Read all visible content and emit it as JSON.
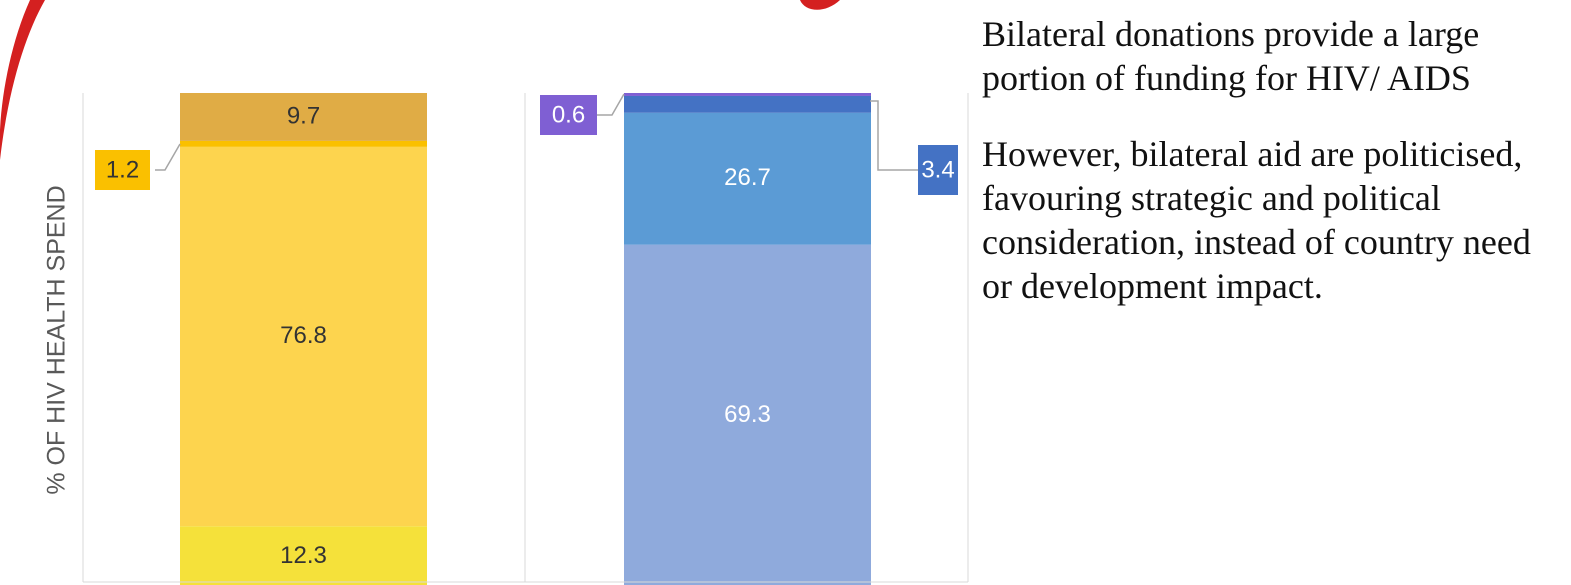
{
  "chart_data": {
    "type": "bar",
    "stacked": true,
    "y_label": "% OF HIV HEALTH SPEND",
    "categories": [
      null,
      null
    ],
    "ylim": [
      0,
      100
    ],
    "series": [
      {
        "values": [
          12.3,
          69.3
        ],
        "colors": [
          "#f5e13a",
          "#8faadc"
        ],
        "label_colors": [
          "#333333",
          "#ffffff"
        ]
      },
      {
        "values": [
          76.8,
          26.7
        ],
        "colors": [
          "#fdd44e",
          "#5b9bd5"
        ],
        "label_colors": [
          "#333333",
          "#ffffff"
        ]
      },
      {
        "values": [
          1.2,
          3.4
        ],
        "colors": [
          "#fac000",
          "#4472c4"
        ],
        "label_colors": [
          "#333333",
          "#ffffff"
        ]
      },
      {
        "values": [
          9.7,
          0.6
        ],
        "colors": [
          "#e0ac45",
          "#7f5fd3"
        ],
        "label_colors": [
          "#333333",
          "#ffffff"
        ]
      }
    ]
  },
  "text": {
    "paragraphs": [
      "Bilateral donations provide a large portion of funding for HIV/ AIDS",
      "However, bilateral aid are politicised, favouring strategic and political consideration, instead of country need or development impact."
    ]
  }
}
